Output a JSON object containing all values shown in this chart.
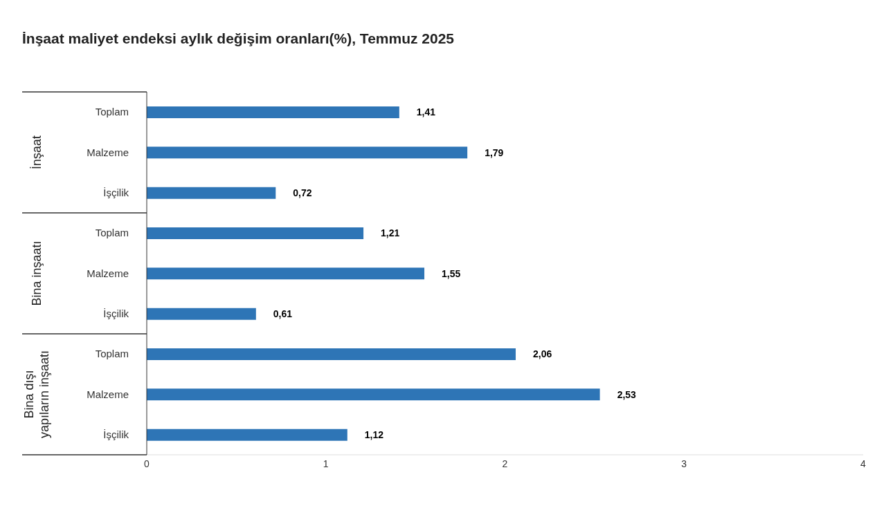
{
  "chart_data": {
    "type": "bar",
    "orientation": "horizontal",
    "title": "İnşaat maliyet endeksi aylık değişim oranları(%), Temmuz 2025",
    "categories": [
      "Toplam",
      "Malzeme",
      "İşçilik",
      "Toplam",
      "Malzeme",
      "İşçilik",
      "Toplam",
      "Malzeme",
      "İşçilik"
    ],
    "values": [
      1.41,
      1.79,
      0.72,
      1.21,
      1.55,
      0.61,
      2.06,
      2.53,
      1.12
    ],
    "value_labels": [
      "1,41",
      "1,79",
      "0,72",
      "1,21",
      "1,55",
      "0,61",
      "2,06",
      "2,53",
      "1,12"
    ],
    "color": "#2e75b6",
    "annotations": [
      "İnşaat",
      "Bina inşaatı",
      "Bina dışı yapıların inşaatı"
    ],
    "xlim": [
      0,
      4
    ],
    "xticks": [
      0,
      1,
      2,
      3,
      4
    ],
    "grid": false
  }
}
